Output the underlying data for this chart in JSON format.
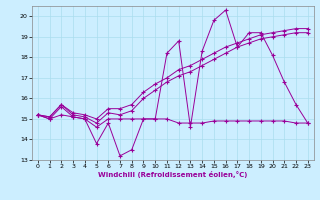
{
  "xlabel": "Windchill (Refroidissement éolien,°C)",
  "x_values": [
    0,
    1,
    2,
    3,
    4,
    5,
    6,
    7,
    8,
    9,
    10,
    11,
    12,
    13,
    14,
    15,
    16,
    17,
    18,
    19,
    20,
    21,
    22,
    23
  ],
  "line1_y": [
    15.2,
    15.0,
    15.2,
    15.1,
    15.0,
    13.8,
    14.8,
    13.2,
    13.5,
    15.0,
    15.0,
    18.2,
    18.8,
    14.6,
    18.3,
    19.8,
    20.3,
    18.5,
    19.2,
    19.2,
    18.1,
    16.8,
    15.7,
    14.8
  ],
  "line2_y": [
    15.2,
    15.0,
    15.6,
    15.1,
    15.0,
    14.6,
    15.0,
    15.0,
    15.0,
    15.0,
    15.0,
    15.0,
    14.8,
    14.8,
    14.8,
    14.9,
    14.9,
    14.9,
    14.9,
    14.9,
    14.9,
    14.9,
    14.8,
    14.8
  ],
  "line3_y": [
    15.2,
    15.1,
    15.7,
    15.2,
    15.1,
    14.8,
    15.3,
    15.2,
    15.4,
    16.0,
    16.4,
    16.8,
    17.1,
    17.3,
    17.6,
    17.9,
    18.2,
    18.5,
    18.7,
    18.9,
    19.0,
    19.1,
    19.2,
    19.2
  ],
  "line4_y": [
    15.2,
    15.1,
    15.7,
    15.3,
    15.2,
    15.0,
    15.5,
    15.5,
    15.7,
    16.3,
    16.7,
    17.0,
    17.4,
    17.6,
    17.9,
    18.2,
    18.5,
    18.7,
    18.9,
    19.1,
    19.2,
    19.3,
    19.4,
    19.4
  ],
  "color": "#990099",
  "bg_color": "#cceeff",
  "ylim": [
    13,
    20.5
  ],
  "xlim": [
    -0.5,
    23.5
  ],
  "yticks": [
    13,
    14,
    15,
    16,
    17,
    18,
    19,
    20
  ],
  "xticks": [
    0,
    1,
    2,
    3,
    4,
    5,
    6,
    7,
    8,
    9,
    10,
    11,
    12,
    13,
    14,
    15,
    16,
    17,
    18,
    19,
    20,
    21,
    22,
    23
  ]
}
